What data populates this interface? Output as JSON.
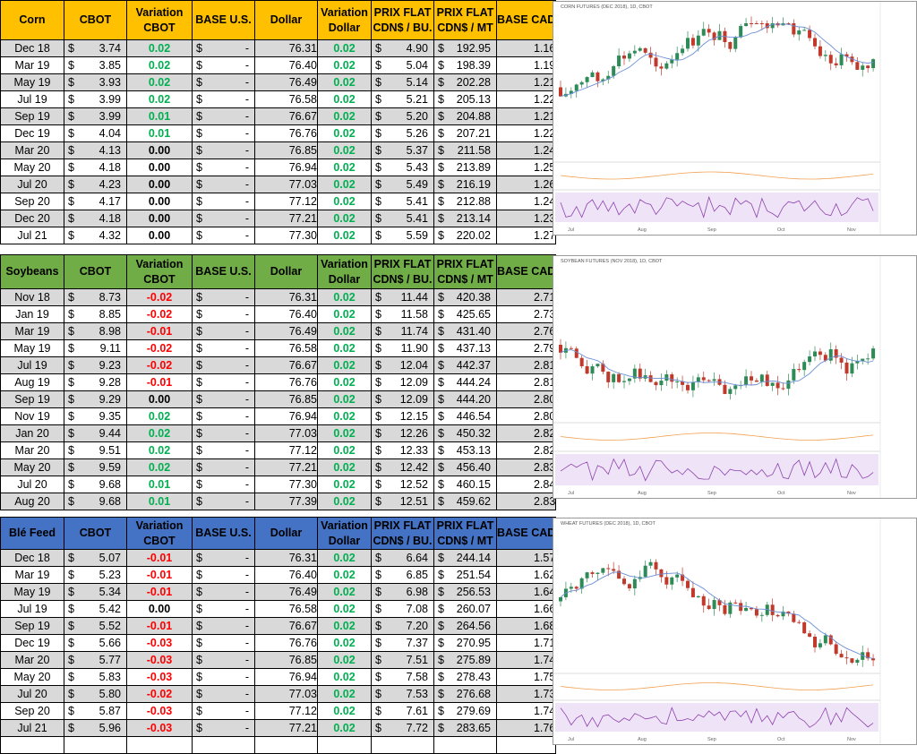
{
  "columns": [
    "CBOT",
    "Variation CBOT",
    "BASE U.S.",
    "Dollar",
    "Variation Dollar",
    "PRIX FLAT CDN$ / BU.",
    "PRIX FLAT CDN$ / MT",
    "BASE CAD"
  ],
  "headers": {
    "cbot": "CBOT",
    "var_cbot_1": "Variation",
    "var_cbot_2": "CBOT",
    "base_us": "BASE U.S.",
    "dollar": "Dollar",
    "var_dollar_1": "Variation",
    "var_dollar_2": "Dollar",
    "prix_bu_1": "PRIX FLAT",
    "prix_bu_2": "CDN$ / BU.",
    "prix_mt_1": "PRIX FLAT",
    "prix_mt_2": "CDN$ / MT",
    "base_cad": "BASE CAD"
  },
  "currency_symbol": "$",
  "dash": "-",
  "colors": {
    "corn_header": "#ffc000",
    "soy_header": "#70ad47",
    "wheat_header": "#4472c4",
    "positive": "#00b050",
    "negative": "#ff0000"
  },
  "corn": {
    "name": "Corn",
    "chart_title": "CORN FUTURES (DEC 2018), 1D, CBOT",
    "rows": [
      [
        "Dec 18",
        "3.74",
        "0.02",
        "76.31",
        "0.02",
        "4.90",
        "192.95",
        "1.16"
      ],
      [
        "Mar 19",
        "3.85",
        "0.02",
        "76.40",
        "0.02",
        "5.04",
        "198.39",
        "1.19"
      ],
      [
        "May 19",
        "3.93",
        "0.02",
        "76.49",
        "0.02",
        "5.14",
        "202.28",
        "1.21"
      ],
      [
        "Jul 19",
        "3.99",
        "0.02",
        "76.58",
        "0.02",
        "5.21",
        "205.13",
        "1.22"
      ],
      [
        "Sep 19",
        "3.99",
        "0.01",
        "76.67",
        "0.02",
        "5.20",
        "204.88",
        "1.21"
      ],
      [
        "Dec 19",
        "4.04",
        "0.01",
        "76.76",
        "0.02",
        "5.26",
        "207.21",
        "1.22"
      ],
      [
        "Mar 20",
        "4.13",
        "0.00",
        "76.85",
        "0.02",
        "5.37",
        "211.58",
        "1.24"
      ],
      [
        "May 20",
        "4.18",
        "0.00",
        "76.94",
        "0.02",
        "5.43",
        "213.89",
        "1.25"
      ],
      [
        "Jul 20",
        "4.23",
        "0.00",
        "77.03",
        "0.02",
        "5.49",
        "216.19",
        "1.26"
      ],
      [
        "Sep 20",
        "4.17",
        "0.00",
        "77.12",
        "0.02",
        "5.41",
        "212.88",
        "1.24"
      ],
      [
        "Dec 20",
        "4.18",
        "0.00",
        "77.21",
        "0.02",
        "5.41",
        "213.14",
        "1.23"
      ],
      [
        "Jul 21",
        "4.32",
        "0.00",
        "77.30",
        "0.02",
        "5.59",
        "220.02",
        "1.27"
      ]
    ]
  },
  "soybeans": {
    "name": "Soybeans",
    "chart_title": "SOYBEAN FUTURES (NOV 2018), 1D, CBOT",
    "rows": [
      [
        "Nov 18",
        "8.73",
        "-0.02",
        "76.31",
        "0.02",
        "11.44",
        "420.38",
        "2.71"
      ],
      [
        "Jan 19",
        "8.85",
        "-0.02",
        "76.40",
        "0.02",
        "11.58",
        "425.65",
        "2.73"
      ],
      [
        "Mar 19",
        "8.98",
        "-0.01",
        "76.49",
        "0.02",
        "11.74",
        "431.40",
        "2.76"
      ],
      [
        "May 19",
        "9.11",
        "-0.02",
        "76.58",
        "0.02",
        "11.90",
        "437.13",
        "2.79"
      ],
      [
        "Jul 19",
        "9.23",
        "-0.02",
        "76.67",
        "0.02",
        "12.04",
        "442.37",
        "2.81"
      ],
      [
        "Aug 19",
        "9.28",
        "-0.01",
        "76.76",
        "0.02",
        "12.09",
        "444.24",
        "2.81"
      ],
      [
        "Sep 19",
        "9.29",
        "0.00",
        "76.85",
        "0.02",
        "12.09",
        "444.20",
        "2.80"
      ],
      [
        "Nov 19",
        "9.35",
        "0.02",
        "76.94",
        "0.02",
        "12.15",
        "446.54",
        "2.80"
      ],
      [
        "Jan 20",
        "9.44",
        "0.02",
        "77.03",
        "0.02",
        "12.26",
        "450.32",
        "2.82"
      ],
      [
        "Mar 20",
        "9.51",
        "0.02",
        "77.12",
        "0.02",
        "12.33",
        "453.13",
        "2.82"
      ],
      [
        "May 20",
        "9.59",
        "0.02",
        "77.21",
        "0.02",
        "12.42",
        "456.40",
        "2.83"
      ],
      [
        "Jul 20",
        "9.68",
        "0.01",
        "77.30",
        "0.02",
        "12.52",
        "460.15",
        "2.84"
      ],
      [
        "Aug 20",
        "9.68",
        "0.01",
        "77.39",
        "0.02",
        "12.51",
        "459.62",
        "2.83"
      ]
    ]
  },
  "wheat": {
    "name": "Blé Feed",
    "chart_title": "WHEAT FUTURES (DEC 2018), 1D, CBOT",
    "rows": [
      [
        "Dec 18",
        "5.07",
        "-0.01",
        "76.31",
        "0.02",
        "6.64",
        "244.14",
        "1.57"
      ],
      [
        "Mar 19",
        "5.23",
        "-0.01",
        "76.40",
        "0.02",
        "6.85",
        "251.54",
        "1.62"
      ],
      [
        "May 19",
        "5.34",
        "-0.01",
        "76.49",
        "0.02",
        "6.98",
        "256.53",
        "1.64"
      ],
      [
        "Jul 19",
        "5.42",
        "0.00",
        "76.58",
        "0.02",
        "7.08",
        "260.07",
        "1.66"
      ],
      [
        "Sep 19",
        "5.52",
        "-0.01",
        "76.67",
        "0.02",
        "7.20",
        "264.56",
        "1.68"
      ],
      [
        "Dec 19",
        "5.66",
        "-0.03",
        "76.76",
        "0.02",
        "7.37",
        "270.95",
        "1.71"
      ],
      [
        "Mar 20",
        "5.77",
        "-0.03",
        "76.85",
        "0.02",
        "7.51",
        "275.89",
        "1.74"
      ],
      [
        "May 20",
        "5.83",
        "-0.03",
        "76.94",
        "0.02",
        "7.58",
        "278.43",
        "1.75"
      ],
      [
        "Jul 20",
        "5.80",
        "-0.02",
        "77.03",
        "0.02",
        "7.53",
        "276.68",
        "1.73"
      ],
      [
        "Sep 20",
        "5.87",
        "-0.03",
        "77.12",
        "0.02",
        "7.61",
        "279.69",
        "1.74"
      ],
      [
        "Jul 21",
        "5.96",
        "-0.03",
        "77.21",
        "0.02",
        "7.72",
        "283.65",
        "1.76"
      ]
    ]
  },
  "chart_axis_months": [
    "Jul",
    "Aug",
    "Sep",
    "Oct",
    "Nov"
  ]
}
